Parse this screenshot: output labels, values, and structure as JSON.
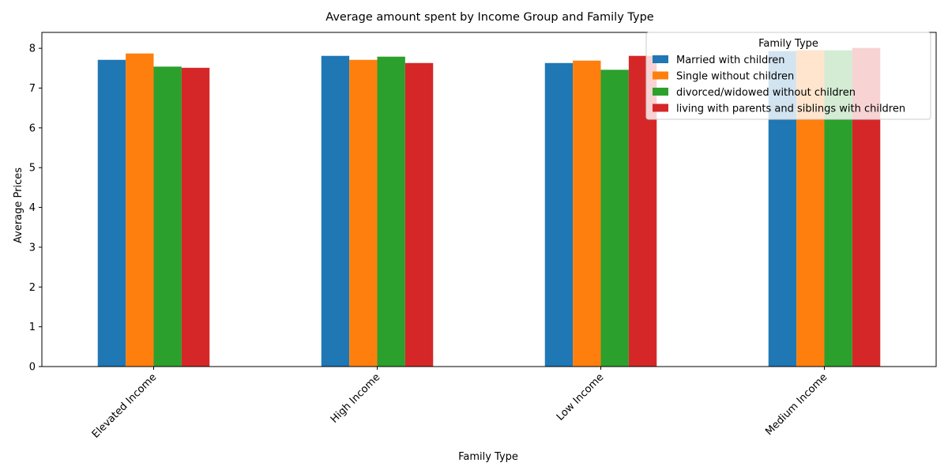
{
  "chart_data": {
    "type": "bar",
    "title": "Average amount spent by Income Group and Family Type",
    "xlabel": "Family Type",
    "ylabel": "Average Prices",
    "categories": [
      "Elevated Income",
      "High Income",
      "Low Income",
      "Medium Income"
    ],
    "series": [
      {
        "name": "Married with children",
        "color": "#1f77b4",
        "values": [
          7.71,
          7.81,
          7.63,
          7.93
        ]
      },
      {
        "name": "Single without children",
        "color": "#ff7f0e",
        "values": [
          7.87,
          7.71,
          7.69,
          7.95
        ]
      },
      {
        "name": "divorced/widowed without children",
        "color": "#2ca02c",
        "values": [
          7.54,
          7.79,
          7.46,
          7.95
        ]
      },
      {
        "name": "living with parents and siblings with children",
        "color": "#d62728",
        "values": [
          7.51,
          7.63,
          7.81,
          8.01
        ]
      }
    ],
    "ylim": [
      0,
      8.4
    ],
    "yticks": [
      0,
      1,
      2,
      3,
      4,
      5,
      6,
      7,
      8
    ],
    "legend_title": "Family Type",
    "legend_position": "top-right",
    "grid": false
  }
}
